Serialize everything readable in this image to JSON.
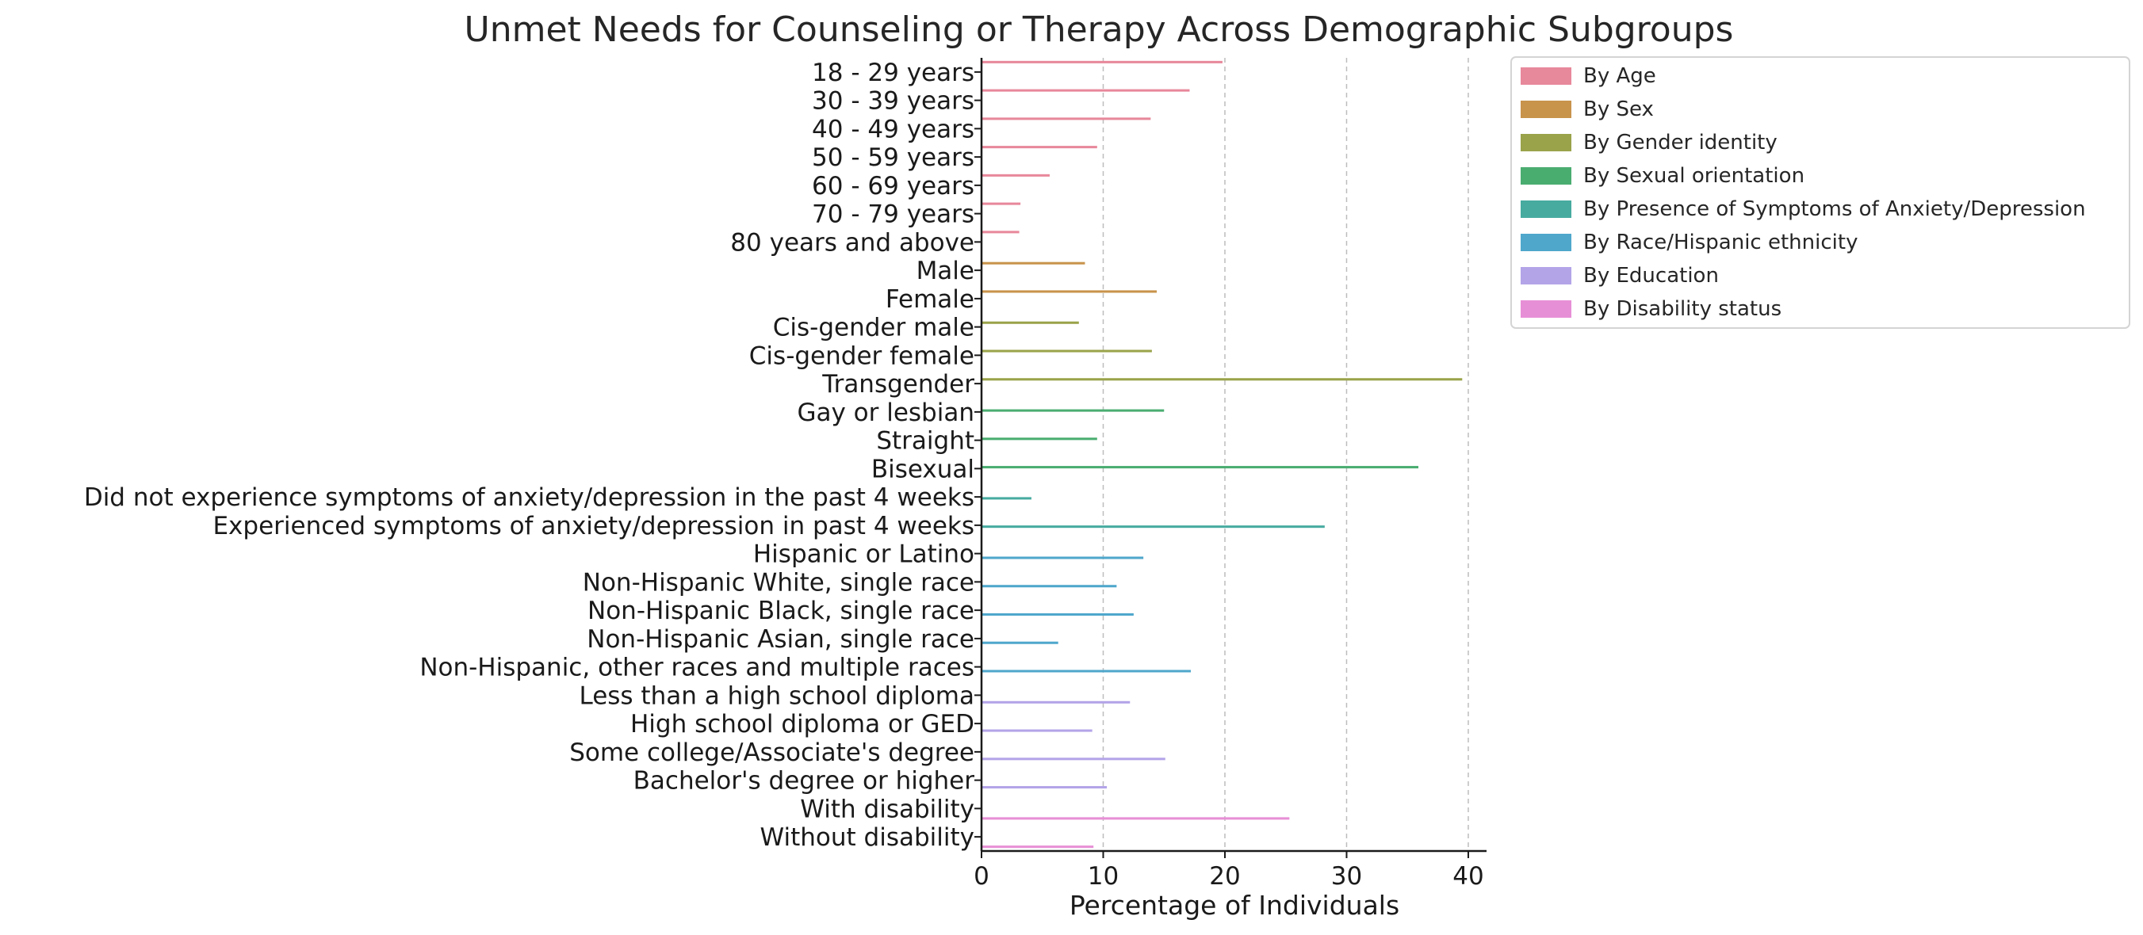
{
  "chart_data": {
    "type": "bar",
    "orientation": "horizontal",
    "title": "Unmet Needs for Counseling or Therapy Across Demographic Subgroups",
    "xlabel": "Percentage of Individuals",
    "ylabel": "",
    "xlim": [
      0,
      41.5
    ],
    "xticks": [
      0,
      10,
      20,
      30,
      40
    ],
    "grid": "x-dashed",
    "legend_position": "upper-right-outside",
    "categories": [
      "18 - 29 years",
      "30 - 39 years",
      "40 - 49 years",
      "50 - 59 years",
      "60 - 69 years",
      "70 - 79 years",
      "80 years and above",
      "Male",
      "Female",
      "Cis-gender male",
      "Cis-gender female",
      "Transgender",
      "Gay or lesbian",
      "Straight",
      "Bisexual",
      "Did not experience symptoms of anxiety/depression in the past 4 weeks",
      "Experienced symptoms of anxiety/depression in past 4 weeks",
      "Hispanic or Latino",
      "Non-Hispanic White, single race",
      "Non-Hispanic Black, single race",
      "Non-Hispanic Asian, single race",
      "Non-Hispanic, other races and multiple races",
      "Less than a high school diploma",
      "High school diploma or GED",
      "Some college/Associate's degree",
      "Bachelor's degree or higher",
      "With disability",
      "Without disability"
    ],
    "series": [
      {
        "name": "By Age",
        "color": "#e8889b",
        "values": {
          "18 - 29 years": 19.8,
          "30 - 39 years": 17.1,
          "40 - 49 years": 13.9,
          "50 - 59 years": 9.5,
          "60 - 69 years": 5.6,
          "70 - 79 years": 3.2,
          "80 years and above": 3.1
        }
      },
      {
        "name": "By Sex",
        "color": "#c8934b",
        "values": {
          "Male": 8.5,
          "Female": 14.4
        }
      },
      {
        "name": "By Gender identity",
        "color": "#9aa34a",
        "values": {
          "Cis-gender male": 8.0,
          "Cis-gender female": 14.0,
          "Transgender": 39.5
        }
      },
      {
        "name": "By Sexual orientation",
        "color": "#4aad70",
        "values": {
          "Gay or lesbian": 15.0,
          "Straight": 9.5,
          "Bisexual": 35.9
        }
      },
      {
        "name": "By Presence of Symptoms of Anxiety/Depression",
        "color": "#47aba0",
        "values": {
          "Did not experience symptoms of anxiety/depression in the past 4 weeks": 4.1,
          "Experienced symptoms of anxiety/depression in past 4 weeks": 28.2
        }
      },
      {
        "name": "By Race/Hispanic ethnicity",
        "color": "#4fa7cc",
        "values": {
          "Hispanic or Latino": 13.3,
          "Non-Hispanic White, single race": 11.1,
          "Non-Hispanic Black, single race": 12.5,
          "Non-Hispanic Asian, single race": 6.3,
          "Non-Hispanic, other races and multiple races": 17.2
        }
      },
      {
        "name": "By Education",
        "color": "#b3a4e8",
        "values": {
          "Less than a high school diploma": 12.2,
          "High school diploma or GED": 9.1,
          "Some college/Associate's degree": 15.1,
          "Bachelor's degree or higher": 10.3
        }
      },
      {
        "name": "By Disability status",
        "color": "#e78fd6",
        "values": {
          "With disability": 25.3,
          "Without disability": 9.2
        }
      }
    ]
  }
}
